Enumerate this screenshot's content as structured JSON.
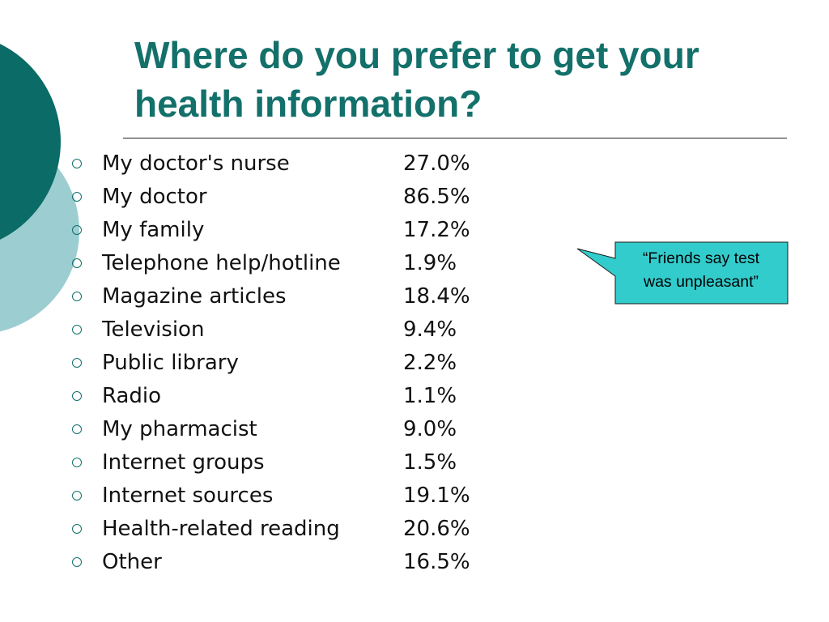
{
  "slide": {
    "title": "Where do you prefer to get your health information?",
    "accent_color": "#13706a",
    "decor_light_color": "#9ccdd1",
    "items": [
      {
        "label": "My doctor's nurse",
        "value": "27.0%"
      },
      {
        "label": "My doctor",
        "value": "86.5%"
      },
      {
        "label": "My family",
        "value": "17.2%"
      },
      {
        "label": "Telephone help/hotline",
        "value": "1.9%"
      },
      {
        "label": "Magazine articles",
        "value": "18.4%"
      },
      {
        "label": "Television",
        "value": "9.4%"
      },
      {
        "label": "Public library",
        "value": "2.2%"
      },
      {
        "label": "Radio",
        "value": "1.1%"
      },
      {
        "label": "My pharmacist",
        "value": "9.0%"
      },
      {
        "label": "Internet groups",
        "value": "1.5%"
      },
      {
        "label": "Internet sources",
        "value": "19.1%"
      },
      {
        "label": "Health-related reading",
        "value": "20.6%"
      },
      {
        "label": "Other",
        "value": "16.5%"
      }
    ],
    "callout": {
      "line1": "“Friends say test",
      "line2": "was unpleasant”",
      "fill_color": "#33cccc"
    }
  }
}
